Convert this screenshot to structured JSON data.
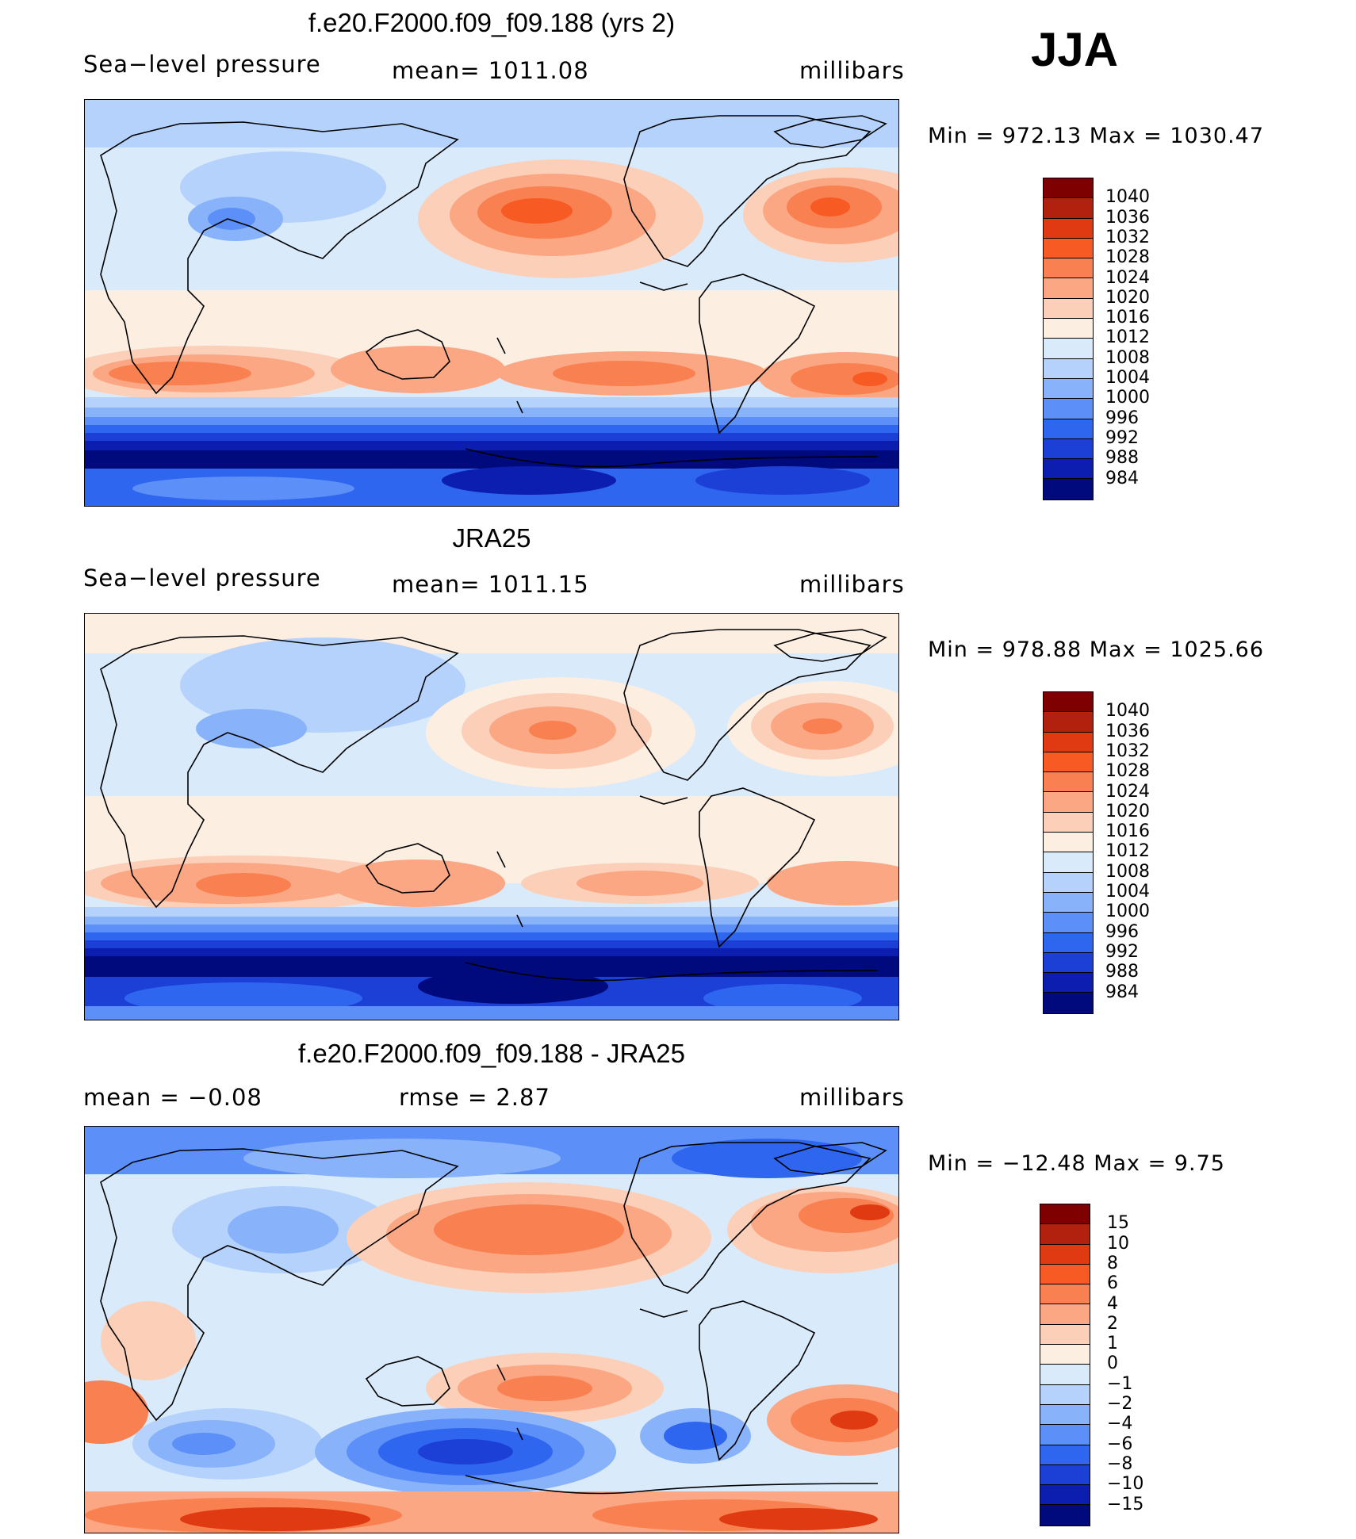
{
  "season": "JJA",
  "panels": [
    {
      "title": "f.e20.F2000.f09_f09.188 (yrs 2)",
      "left_label": "Sea−level  pressure",
      "center_label": "mean=  1011.08",
      "right_label": "millibars",
      "minmax": "Min  =  972.13  Max  =  1030.47",
      "colorbar": "abs"
    },
    {
      "title": "JRA25",
      "left_label": "Sea−level  pressure",
      "center_label": "mean=  1011.15",
      "right_label": "millibars",
      "minmax": "Min  =  978.88  Max  =  1025.66",
      "colorbar": "abs"
    },
    {
      "title": "f.e20.F2000.f09_f09.188 - JRA25",
      "left_label": "mean  =    −0.08",
      "center_label": "rmse  =     2.87",
      "right_label": "millibars",
      "minmax": "Min  =  −12.48  Max  =      9.75",
      "colorbar": "diff"
    }
  ],
  "colorbars": {
    "abs": {
      "labels": [
        "1040",
        "1036",
        "1032",
        "1028",
        "1024",
        "1020",
        "1016",
        "1012",
        "1008",
        "1004",
        "1000",
        "996",
        "992",
        "988",
        "984"
      ],
      "colors": [
        "#7f0000",
        "#b2210d",
        "#df3a12",
        "#f75a22",
        "#f98050",
        "#fba784",
        "#fcd0b8",
        "#fdeee2",
        "#d9eafb",
        "#b4d2fb",
        "#88b3fa",
        "#5c8ff7",
        "#2e66f0",
        "#1c40d6",
        "#0b1eb0",
        "#000a7c"
      ]
    },
    "diff": {
      "labels": [
        "15",
        "10",
        "8",
        "6",
        "4",
        "2",
        "1",
        "0",
        "−1",
        "−2",
        "−4",
        "−6",
        "−8",
        "−10",
        "−15"
      ],
      "colors": [
        "#7f0000",
        "#b2210d",
        "#df3a12",
        "#f75a22",
        "#f98050",
        "#fba784",
        "#fcd0b8",
        "#fdeee2",
        "#d9eafb",
        "#b4d2fb",
        "#88b3fa",
        "#5c8ff7",
        "#2e66f0",
        "#1c40d6",
        "#0b1eb0",
        "#000a7c"
      ]
    }
  }
}
